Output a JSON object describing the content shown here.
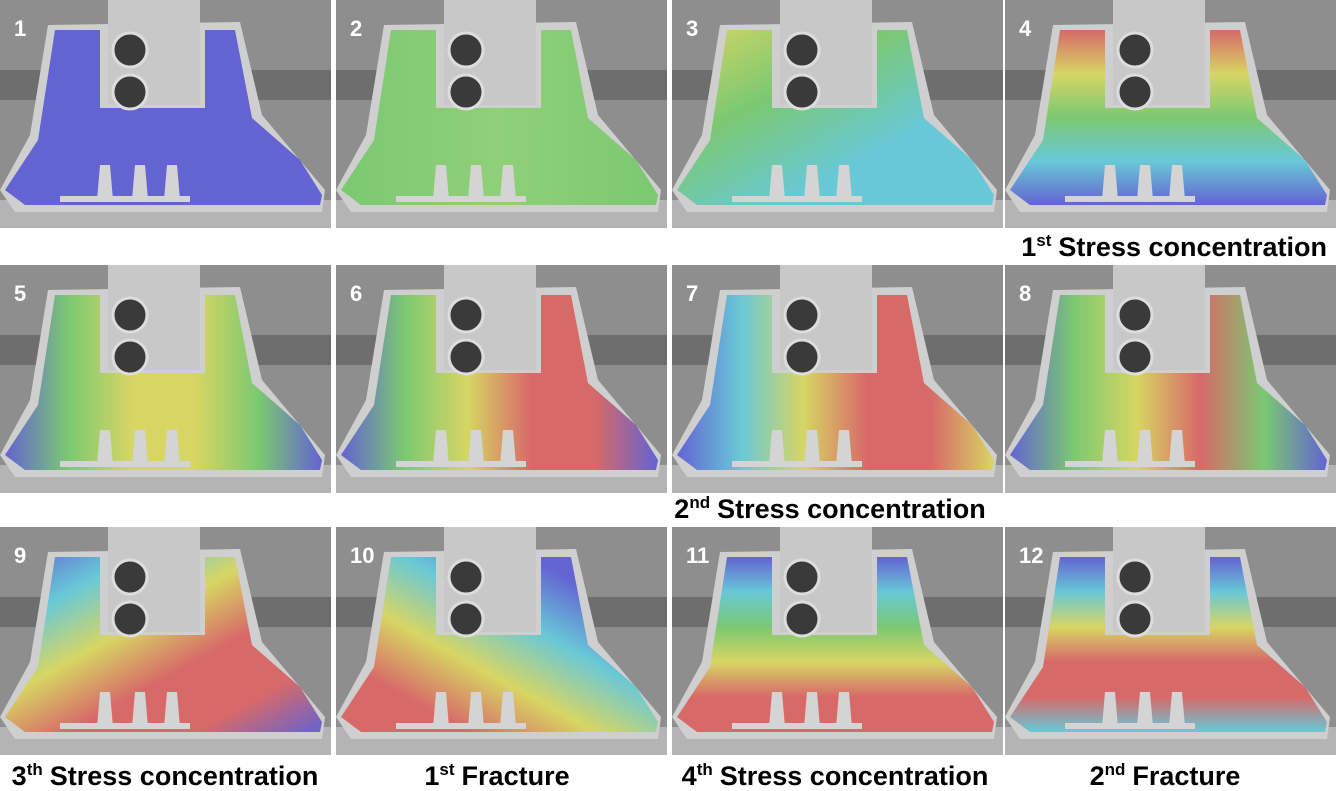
{
  "panels": [
    {
      "label": "1"
    },
    {
      "label": "2"
    },
    {
      "label": "3"
    },
    {
      "label": "4"
    },
    {
      "label": "5"
    },
    {
      "label": "6"
    },
    {
      "label": "7"
    },
    {
      "label": "8"
    },
    {
      "label": "9"
    },
    {
      "label": "10"
    },
    {
      "label": "11"
    },
    {
      "label": "12"
    }
  ],
  "captions": [
    {
      "number": "1",
      "suffix": "st",
      "text": "Stress concentration"
    },
    {
      "number": "2",
      "suffix": "nd",
      "text": "Stress concentration"
    },
    {
      "number": "3",
      "suffix": "th",
      "text": "Stress concentration"
    },
    {
      "number": "1",
      "suffix": "st",
      "text": "Fracture"
    },
    {
      "number": "4",
      "suffix": "th",
      "text": "Stress concentration"
    },
    {
      "number": "2",
      "suffix": "nd",
      "text": "Fracture"
    }
  ]
}
